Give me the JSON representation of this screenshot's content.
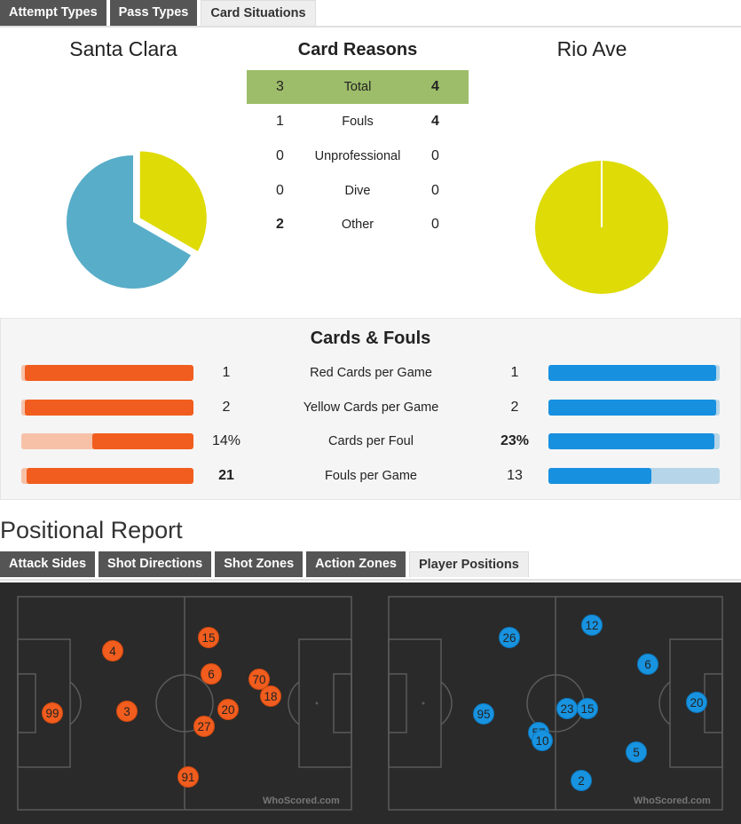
{
  "top_tabs": [
    {
      "label": "Attempt Types",
      "active": false
    },
    {
      "label": "Pass Types",
      "active": false
    },
    {
      "label": "Card Situations",
      "active": true
    }
  ],
  "home_team": "Santa Clara",
  "away_team": "Rio Ave",
  "card_reasons": {
    "title": "Card Reasons",
    "rows": [
      {
        "home": "3",
        "label": "Total",
        "away": "4"
      },
      {
        "home": "1",
        "label": "Fouls",
        "away": "4"
      },
      {
        "home": "0",
        "label": "Unprofessional",
        "away": "0"
      },
      {
        "home": "0",
        "label": "Dive",
        "away": "0"
      },
      {
        "home": "2",
        "label": "Other",
        "away": "0"
      }
    ]
  },
  "home_pie": {
    "yellow_fraction": 0.333,
    "colors": {
      "yellow": "#dedb07",
      "blue": "#58adc8"
    }
  },
  "away_pie": {
    "yellow_fraction": 1.0,
    "colors": {
      "yellow": "#dedb07"
    }
  },
  "cards_fouls": {
    "title": "Cards & Fouls",
    "rows": [
      {
        "label": "Red Cards per Game",
        "home": "1",
        "away": "1",
        "home_fraction": 0.98,
        "away_fraction": 0.98
      },
      {
        "label": "Yellow Cards per Game",
        "home": "2",
        "away": "2",
        "home_fraction": 0.98,
        "away_fraction": 0.98
      },
      {
        "label": "Cards per Foul",
        "home": "14%",
        "away": "23%",
        "home_fraction": 0.59,
        "away_fraction": 0.97
      },
      {
        "label": "Fouls per Game",
        "home": "21",
        "away": "13",
        "home_fraction": 0.97,
        "away_fraction": 0.6
      }
    ],
    "colors": {
      "home": "#f15d1e",
      "home_track": "#f7c1a8",
      "away": "#1790e0",
      "away_track": "#b6d5e8"
    }
  },
  "positional_report": {
    "title": "Positional Report",
    "tabs": [
      {
        "label": "Attack Sides",
        "active": false
      },
      {
        "label": "Shot Directions",
        "active": false
      },
      {
        "label": "Shot Zones",
        "active": false
      },
      {
        "label": "Action Zones",
        "active": false
      },
      {
        "label": "Player Positions",
        "active": true
      }
    ],
    "watermark": "WhoScored.com",
    "home_players": [
      "4",
      "15",
      "6",
      "70",
      "18",
      "99",
      "3",
      "20",
      "27",
      "91"
    ],
    "away_players": [
      "26",
      "12",
      "6",
      "95",
      "23",
      "15",
      "20",
      "57",
      "10",
      "5",
      "2"
    ]
  }
}
